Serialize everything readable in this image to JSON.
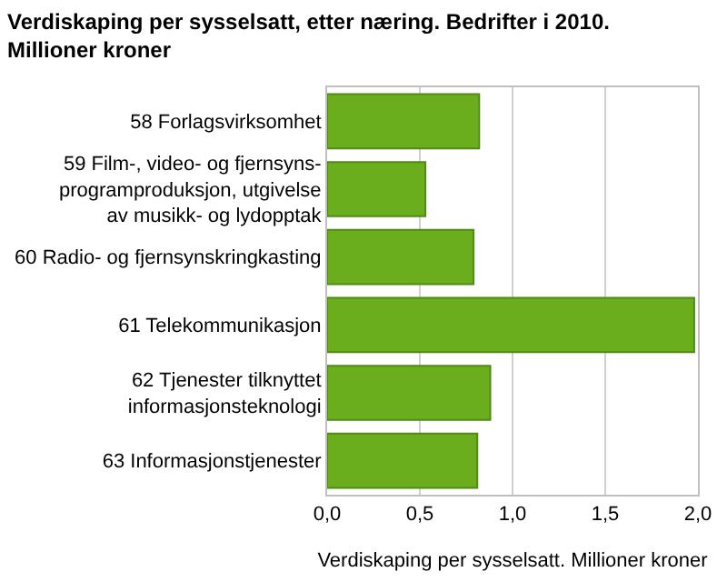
{
  "chart_data": {
    "type": "bar",
    "orientation": "horizontal",
    "title": "Verdiskaping per sysselsatt, etter næring. Bedrifter i 2010.\nMillioner kroner",
    "xlabel": "Verdiskaping per sysselsatt. Millioner kroner",
    "categories": [
      "58 Forlagsvirksomhet",
      "59 Film-, video- og fjernsyns-\nprogramproduksjon, utgivelse\nav musikk- og lydopptak",
      "60 Radio- og fjernsynskringkasting",
      "61 Telekommunikasjon",
      "62 Tjenester tilknyttet\ninformasjonsteknologi",
      "63 Informasjonstjenester"
    ],
    "values": [
      0.82,
      0.53,
      0.79,
      1.98,
      0.88,
      0.81
    ],
    "color": "#6aae1d",
    "xlim": [
      0,
      2.0
    ],
    "xticks": [
      {
        "value": 0,
        "label": "0,0"
      },
      {
        "value": 0.5,
        "label": "0,5"
      },
      {
        "value": 1.0,
        "label": "1,0"
      },
      {
        "value": 1.5,
        "label": "1,5"
      },
      {
        "value": 2.0,
        "label": "2,0"
      }
    ],
    "grid": "x",
    "legend": false
  }
}
